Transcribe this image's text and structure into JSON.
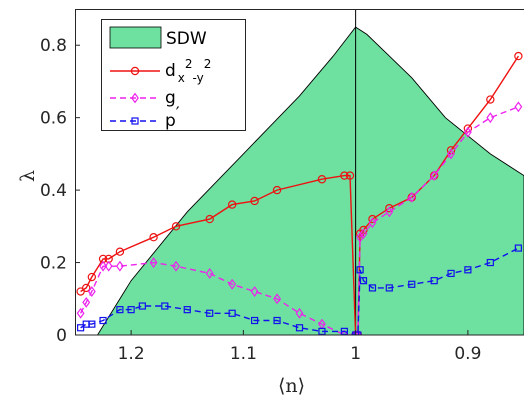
{
  "chart_data": {
    "type": "line",
    "x_direction": "reversed",
    "xlim": [
      0.85,
      1.25
    ],
    "ylim": [
      0,
      0.9
    ],
    "xticks": [
      1.2,
      1.1,
      1,
      0.9
    ],
    "xtick_labels": [
      "1.2",
      "1.1",
      "1",
      "0.9"
    ],
    "yticks": [
      0,
      0.2,
      0.4,
      0.6,
      0.8
    ],
    "ytick_labels": [
      "0",
      "0.2",
      "0.4",
      "0.6",
      "0.8"
    ],
    "xlabel": "⟨n⟩",
    "ylabel": "λ",
    "legend_position": "top-left",
    "vertical_line_x": 1,
    "sdw_region": {
      "name": "SDW",
      "color": "#6ee0a0",
      "points": [
        [
          1.25,
          0
        ],
        [
          1.23,
          0
        ],
        [
          1.2,
          0.15
        ],
        [
          1.15,
          0.34
        ],
        [
          1.1,
          0.5
        ],
        [
          1.05,
          0.66
        ],
        [
          1.02,
          0.77
        ],
        [
          1.0,
          0.85
        ],
        [
          0.99,
          0.83
        ],
        [
          0.95,
          0.71
        ],
        [
          0.92,
          0.6
        ],
        [
          0.9,
          0.55
        ],
        [
          0.88,
          0.5
        ],
        [
          0.85,
          0.44
        ],
        [
          0.85,
          0
        ]
      ]
    },
    "series": [
      {
        "name": "d_{x^2-y^2}",
        "legend_main": "d",
        "legend_sub": "x",
        "legend_sup1": "2",
        "legend_mid": "-y",
        "legend_sup2": "2",
        "color": "#ee1111",
        "dash": "solid",
        "marker": "circle",
        "points": [
          [
            1.245,
            0.12
          ],
          [
            1.24,
            0.13
          ],
          [
            1.235,
            0.16
          ],
          [
            1.225,
            0.21
          ],
          [
            1.22,
            0.21
          ],
          [
            1.21,
            0.23
          ],
          [
            1.18,
            0.27
          ],
          [
            1.16,
            0.3
          ],
          [
            1.13,
            0.32
          ],
          [
            1.11,
            0.36
          ],
          [
            1.09,
            0.37
          ],
          [
            1.07,
            0.4
          ],
          [
            1.03,
            0.43
          ],
          [
            1.01,
            0.44
          ],
          [
            1.005,
            0.44
          ],
          [
            1.0,
            0.0
          ],
          [
            0.998,
            0.0
          ],
          [
            0.996,
            0.28
          ],
          [
            0.993,
            0.29
          ],
          [
            0.985,
            0.32
          ],
          [
            0.97,
            0.35
          ],
          [
            0.95,
            0.38
          ],
          [
            0.93,
            0.44
          ],
          [
            0.915,
            0.51
          ],
          [
            0.9,
            0.57
          ],
          [
            0.88,
            0.65
          ],
          [
            0.855,
            0.77
          ]
        ]
      },
      {
        "name": "g",
        "legend_main": "g",
        "color": "#ee22ee",
        "dash": "dash",
        "marker": "diamond",
        "points": [
          [
            1.245,
            0.06
          ],
          [
            1.24,
            0.09
          ],
          [
            1.235,
            0.12
          ],
          [
            1.225,
            0.19
          ],
          [
            1.22,
            0.19
          ],
          [
            1.21,
            0.19
          ],
          [
            1.18,
            0.2
          ],
          [
            1.16,
            0.19
          ],
          [
            1.13,
            0.17
          ],
          [
            1.11,
            0.14
          ],
          [
            1.09,
            0.12
          ],
          [
            1.07,
            0.1
          ],
          [
            1.05,
            0.06
          ],
          [
            1.03,
            0.03
          ],
          [
            1.01,
            0.0
          ],
          [
            1.0,
            0.0
          ],
          [
            0.998,
            0.0
          ],
          [
            0.996,
            0.27
          ],
          [
            0.993,
            0.28
          ],
          [
            0.985,
            0.31
          ],
          [
            0.97,
            0.34
          ],
          [
            0.95,
            0.38
          ],
          [
            0.93,
            0.44
          ],
          [
            0.915,
            0.5
          ],
          [
            0.9,
            0.56
          ],
          [
            0.88,
            0.6
          ],
          [
            0.855,
            0.63
          ]
        ]
      },
      {
        "name": "p'",
        "legend_main": "p",
        "legend_prime": "′",
        "color": "#1111ee",
        "dash": "dash",
        "marker": "square",
        "points": [
          [
            1.245,
            0.02
          ],
          [
            1.24,
            0.03
          ],
          [
            1.235,
            0.03
          ],
          [
            1.225,
            0.04
          ],
          [
            1.21,
            0.07
          ],
          [
            1.2,
            0.07
          ],
          [
            1.19,
            0.08
          ],
          [
            1.17,
            0.08
          ],
          [
            1.15,
            0.07
          ],
          [
            1.13,
            0.06
          ],
          [
            1.11,
            0.06
          ],
          [
            1.09,
            0.04
          ],
          [
            1.07,
            0.04
          ],
          [
            1.05,
            0.02
          ],
          [
            1.03,
            0.01
          ],
          [
            1.01,
            0.01
          ],
          [
            1.0,
            0.0
          ],
          [
            0.998,
            0.0
          ],
          [
            0.996,
            0.18
          ],
          [
            0.993,
            0.15
          ],
          [
            0.985,
            0.13
          ],
          [
            0.97,
            0.13
          ],
          [
            0.95,
            0.14
          ],
          [
            0.93,
            0.15
          ],
          [
            0.915,
            0.17
          ],
          [
            0.9,
            0.18
          ],
          [
            0.88,
            0.2
          ],
          [
            0.855,
            0.24
          ]
        ]
      }
    ]
  }
}
